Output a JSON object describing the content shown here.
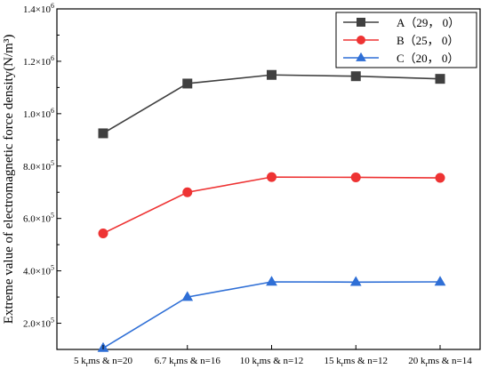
{
  "chart_data": {
    "type": "line",
    "title": "",
    "xlabel": "",
    "ylabel": "Extreme value of electromagnetic force density(N/m³)",
    "categories": [
      {
        "pre": "5 k",
        "sub": "r",
        "post": "ms & n=20"
      },
      {
        "pre": "6.7 k",
        "sub": "r",
        "post": "ms & n=16"
      },
      {
        "pre": "10 k",
        "sub": "r",
        "post": "ms & n=12"
      },
      {
        "pre": "15 k",
        "sub": "r",
        "post": "ms & n=12"
      },
      {
        "pre": "20 k",
        "sub": "r",
        "post": "ms & n=14"
      }
    ],
    "ylim": [
      100000,
      1400000
    ],
    "y_ticks": [
      {
        "value": 200000,
        "mant": "2.0×10",
        "exp": "5"
      },
      {
        "value": 400000,
        "mant": "4.0×10",
        "exp": "5"
      },
      {
        "value": 600000,
        "mant": "6.0×10",
        "exp": "5"
      },
      {
        "value": 800000,
        "mant": "8.0×10",
        "exp": "5"
      },
      {
        "value": 1000000,
        "mant": "1.0×10",
        "exp": "6"
      },
      {
        "value": 1200000,
        "mant": "1.2×10",
        "exp": "6"
      },
      {
        "value": 1400000,
        "mant": "1.4×10",
        "exp": "6"
      }
    ],
    "grid": false,
    "legend_position": "top-right",
    "series": [
      {
        "name": "A（29， 0）",
        "color": "#404040",
        "marker": "square",
        "values": [
          925000,
          1115000,
          1148000,
          1143000,
          1133000
        ]
      },
      {
        "name": "B（25， 0）",
        "color": "#ee3333",
        "marker": "circle",
        "values": [
          543000,
          700000,
          758000,
          757000,
          755000
        ]
      },
      {
        "name": "C（20， 0）",
        "color": "#2f6fd6",
        "marker": "triangle",
        "values": [
          105000,
          300000,
          358000,
          357000,
          358000
        ]
      }
    ]
  }
}
